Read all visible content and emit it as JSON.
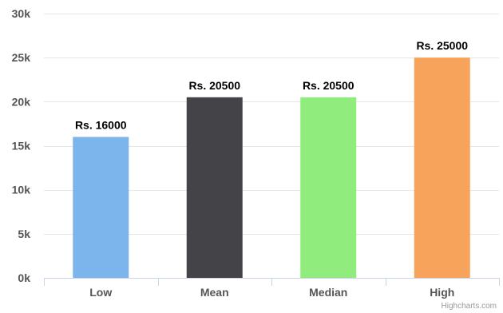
{
  "chart_data": {
    "type": "bar",
    "categories": [
      "Low",
      "Mean",
      "Median",
      "High"
    ],
    "values": [
      16000,
      20500,
      20500,
      25000
    ],
    "data_labels": [
      "Rs. 16000",
      "Rs. 20500",
      "Rs. 20500",
      "Rs. 25000"
    ],
    "colors": [
      "#7cb5ec",
      "#434348",
      "#90ed7d",
      "#f7a35c"
    ],
    "ylim": [
      0,
      30000
    ],
    "yticks": [
      0,
      5000,
      10000,
      15000,
      20000,
      25000,
      30000
    ],
    "ytick_labels": [
      "0k",
      "5k",
      "10k",
      "15k",
      "20k",
      "25k",
      "30k"
    ],
    "grid": true,
    "legend": false
  },
  "credits": "Highcharts.com"
}
